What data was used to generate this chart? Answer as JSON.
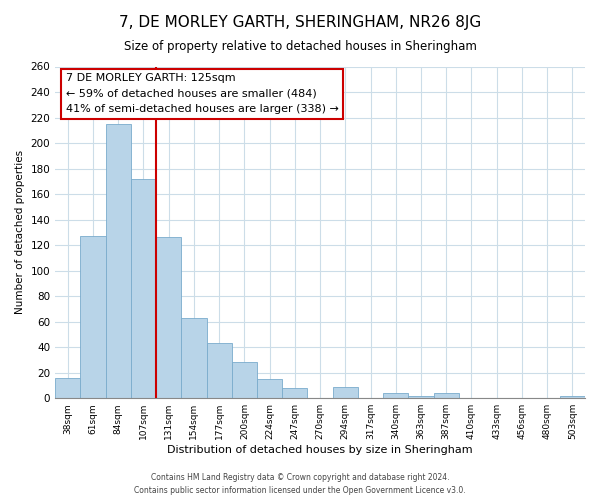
{
  "title": "7, DE MORLEY GARTH, SHERINGHAM, NR26 8JG",
  "subtitle": "Size of property relative to detached houses in Sheringham",
  "xlabel": "Distribution of detached houses by size in Sheringham",
  "ylabel": "Number of detached properties",
  "bar_color": "#b8d4e8",
  "bar_edge_color": "#7aabcc",
  "categories": [
    "38sqm",
    "61sqm",
    "84sqm",
    "107sqm",
    "131sqm",
    "154sqm",
    "177sqm",
    "200sqm",
    "224sqm",
    "247sqm",
    "270sqm",
    "294sqm",
    "317sqm",
    "340sqm",
    "363sqm",
    "387sqm",
    "410sqm",
    "433sqm",
    "456sqm",
    "480sqm",
    "503sqm"
  ],
  "values": [
    16,
    127,
    215,
    172,
    126,
    63,
    43,
    28,
    15,
    8,
    0,
    9,
    0,
    4,
    2,
    4,
    0,
    0,
    0,
    0,
    2
  ],
  "property_line_idx": 4,
  "property_line_label": "7 DE MORLEY GARTH: 125sqm",
  "annotation_line1": "← 59% of detached houses are smaller (484)",
  "annotation_line2": "41% of semi-detached houses are larger (338) →",
  "ylim": [
    0,
    260
  ],
  "yticks": [
    0,
    20,
    40,
    60,
    80,
    100,
    120,
    140,
    160,
    180,
    200,
    220,
    240,
    260
  ],
  "footer_line1": "Contains HM Land Registry data © Crown copyright and database right 2024.",
  "footer_line2": "Contains public sector information licensed under the Open Government Licence v3.0.",
  "annotation_box_color": "#ffffff",
  "annotation_box_edge_color": "#cc0000",
  "property_line_color": "#cc0000",
  "grid_color": "#ccdde8"
}
